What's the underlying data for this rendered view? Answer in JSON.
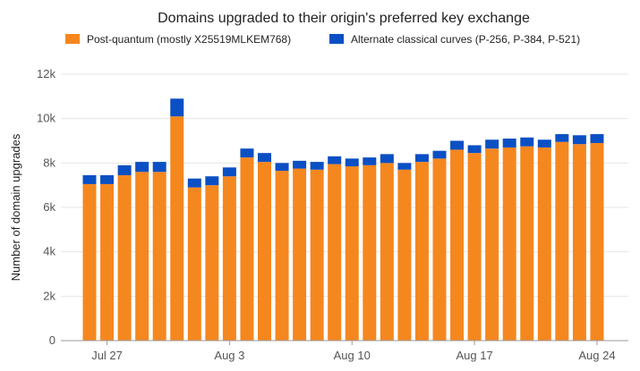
{
  "chart_data": {
    "type": "bar",
    "stacked": true,
    "title": "Domains upgraded to their origin's preferred key exchange",
    "xlabel": "",
    "ylabel": "Number of domain upgrades",
    "ylim": [
      0,
      12000
    ],
    "y_ticks": [
      0,
      2000,
      4000,
      6000,
      8000,
      10000,
      12000
    ],
    "y_tick_labels": [
      "0",
      "2k",
      "4k",
      "6k",
      "8k",
      "10k",
      "12k"
    ],
    "x_tick_labels": [
      {
        "label": "Jul 27",
        "index": 1
      },
      {
        "label": "Aug 3",
        "index": 8
      },
      {
        "label": "Aug 10",
        "index": 15
      },
      {
        "label": "Aug 17",
        "index": 22
      },
      {
        "label": "Aug 24",
        "index": 29
      }
    ],
    "grid": true,
    "legend_position": "top",
    "categories": [
      "Jul 26",
      "Jul 27",
      "Jul 28",
      "Jul 29",
      "Jul 30",
      "Jul 31",
      "Aug 1",
      "Aug 2",
      "Aug 3",
      "Aug 4",
      "Aug 5",
      "Aug 6",
      "Aug 7",
      "Aug 8",
      "Aug 9",
      "Aug 10",
      "Aug 11",
      "Aug 12",
      "Aug 13",
      "Aug 14",
      "Aug 15",
      "Aug 16",
      "Aug 17",
      "Aug 18",
      "Aug 19",
      "Aug 20",
      "Aug 21",
      "Aug 22",
      "Aug 23",
      "Aug 24"
    ],
    "series": [
      {
        "name": "Post-quantum (mostly X25519MLKEM768)",
        "color": "#f5871f",
        "values": [
          7050,
          7050,
          7450,
          7600,
          7600,
          10100,
          6900,
          7000,
          7400,
          8250,
          8050,
          7650,
          7750,
          7700,
          7950,
          7850,
          7900,
          8000,
          7700,
          8050,
          8200,
          8600,
          8450,
          8650,
          8700,
          8750,
          8700,
          8950,
          8850,
          8900
        ]
      },
      {
        "name": "Alternate classical curves (P-256, P-384, P-521)",
        "color": "#0b4fc4",
        "values": [
          400,
          400,
          450,
          450,
          450,
          800,
          400,
          400,
          400,
          400,
          400,
          350,
          350,
          350,
          350,
          350,
          350,
          400,
          300,
          350,
          350,
          400,
          350,
          400,
          400,
          400,
          350,
          350,
          400,
          400
        ]
      }
    ]
  }
}
